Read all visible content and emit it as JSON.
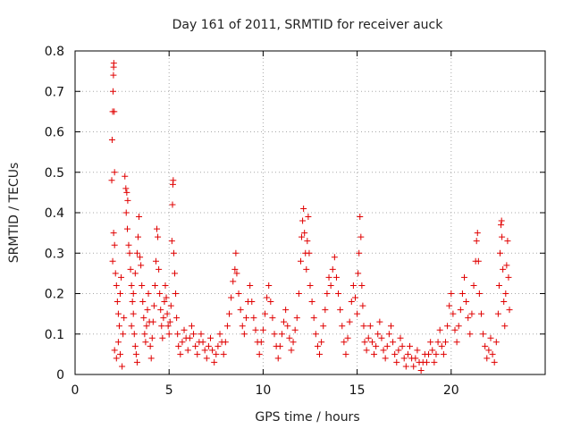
{
  "chart_data": {
    "type": "scatter",
    "title": "Day 161 of 2011, SRMTID for receiver auck",
    "xlabel": "GPS time / hours",
    "ylabel": "SRMTID / TECUs",
    "xlim": [
      0,
      25
    ],
    "ylim": [
      0,
      0.8
    ],
    "xticks": [
      0,
      5,
      10,
      15,
      20
    ],
    "xtick_labels": [
      "0",
      "5",
      "10",
      "15",
      "20"
    ],
    "yticks": [
      0,
      0.1,
      0.2,
      0.3,
      0.4,
      0.5,
      0.6,
      0.7,
      0.8
    ],
    "ytick_labels": [
      "0",
      "0.1",
      "0.2",
      "0.3",
      "0.4",
      "0.5",
      "0.6",
      "0.7",
      "0.8"
    ],
    "grid": true,
    "marker": "+",
    "marker_color": "#e00000",
    "series": [
      {
        "name": "SRMTID",
        "points": [
          [
            1.95,
            0.48
          ],
          [
            1.97,
            0.58
          ],
          [
            2.0,
            0.65
          ],
          [
            2.02,
            0.7
          ],
          [
            2.04,
            0.74
          ],
          [
            2.05,
            0.76
          ],
          [
            2.06,
            0.77
          ],
          [
            2.08,
            0.65
          ],
          [
            2.1,
            0.5
          ],
          [
            2.0,
            0.28
          ],
          [
            2.05,
            0.35
          ],
          [
            2.1,
            0.32
          ],
          [
            2.15,
            0.25
          ],
          [
            2.2,
            0.22
          ],
          [
            2.25,
            0.18
          ],
          [
            2.3,
            0.15
          ],
          [
            2.35,
            0.12
          ],
          [
            2.4,
            0.2
          ],
          [
            2.1,
            0.06
          ],
          [
            2.2,
            0.04
          ],
          [
            2.3,
            0.08
          ],
          [
            2.4,
            0.05
          ],
          [
            2.5,
            0.02
          ],
          [
            2.55,
            0.1
          ],
          [
            2.6,
            0.14
          ],
          [
            2.45,
            0.24
          ],
          [
            2.65,
            0.49
          ],
          [
            2.7,
            0.46
          ],
          [
            2.75,
            0.45
          ],
          [
            2.8,
            0.43
          ],
          [
            2.72,
            0.4
          ],
          [
            2.78,
            0.36
          ],
          [
            2.85,
            0.32
          ],
          [
            2.9,
            0.3
          ],
          [
            2.95,
            0.26
          ],
          [
            3.0,
            0.22
          ],
          [
            3.05,
            0.18
          ],
          [
            3.1,
            0.15
          ],
          [
            3.15,
            0.1
          ],
          [
            3.2,
            0.07
          ],
          [
            3.25,
            0.05
          ],
          [
            3.3,
            0.03
          ],
          [
            3.0,
            0.12
          ],
          [
            3.1,
            0.2
          ],
          [
            3.2,
            0.25
          ],
          [
            3.3,
            0.3
          ],
          [
            3.35,
            0.34
          ],
          [
            3.4,
            0.39
          ],
          [
            3.45,
            0.29
          ],
          [
            3.5,
            0.27
          ],
          [
            3.55,
            0.22
          ],
          [
            3.6,
            0.18
          ],
          [
            3.65,
            0.14
          ],
          [
            3.7,
            0.1
          ],
          [
            3.75,
            0.08
          ],
          [
            3.8,
            0.12
          ],
          [
            3.85,
            0.16
          ],
          [
            3.9,
            0.2
          ],
          [
            3.95,
            0.13
          ],
          [
            4.0,
            0.07
          ],
          [
            4.05,
            0.04
          ],
          [
            4.1,
            0.09
          ],
          [
            4.15,
            0.13
          ],
          [
            4.2,
            0.17
          ],
          [
            4.25,
            0.22
          ],
          [
            4.3,
            0.28
          ],
          [
            4.35,
            0.36
          ],
          [
            4.4,
            0.34
          ],
          [
            4.45,
            0.26
          ],
          [
            4.5,
            0.2
          ],
          [
            4.55,
            0.16
          ],
          [
            4.6,
            0.12
          ],
          [
            4.65,
            0.09
          ],
          [
            4.7,
            0.14
          ],
          [
            4.75,
            0.18
          ],
          [
            4.8,
            0.22
          ],
          [
            4.85,
            0.19
          ],
          [
            4.9,
            0.15
          ],
          [
            4.95,
            0.12
          ],
          [
            5.0,
            0.1
          ],
          [
            5.05,
            0.13
          ],
          [
            5.1,
            0.17
          ],
          [
            5.15,
            0.33
          ],
          [
            5.18,
            0.42
          ],
          [
            5.2,
            0.47
          ],
          [
            5.22,
            0.48
          ],
          [
            5.25,
            0.3
          ],
          [
            5.3,
            0.25
          ],
          [
            5.35,
            0.2
          ],
          [
            5.4,
            0.14
          ],
          [
            5.45,
            0.1
          ],
          [
            5.5,
            0.07
          ],
          [
            5.6,
            0.05
          ],
          [
            5.7,
            0.08
          ],
          [
            5.8,
            0.11
          ],
          [
            5.9,
            0.09
          ],
          [
            6.0,
            0.06
          ],
          [
            6.1,
            0.09
          ],
          [
            6.2,
            0.12
          ],
          [
            6.3,
            0.1
          ],
          [
            6.4,
            0.07
          ],
          [
            6.5,
            0.05
          ],
          [
            6.6,
            0.08
          ],
          [
            6.7,
            0.1
          ],
          [
            6.8,
            0.08
          ],
          [
            6.9,
            0.06
          ],
          [
            7.0,
            0.04
          ],
          [
            7.1,
            0.07
          ],
          [
            7.2,
            0.09
          ],
          [
            7.3,
            0.06
          ],
          [
            7.4,
            0.03
          ],
          [
            7.5,
            0.05
          ],
          [
            7.6,
            0.07
          ],
          [
            7.7,
            0.1
          ],
          [
            7.8,
            0.08
          ],
          [
            7.9,
            0.05
          ],
          [
            8.0,
            0.08
          ],
          [
            8.1,
            0.12
          ],
          [
            8.2,
            0.15
          ],
          [
            8.3,
            0.19
          ],
          [
            8.4,
            0.23
          ],
          [
            8.5,
            0.26
          ],
          [
            8.55,
            0.3
          ],
          [
            8.6,
            0.25
          ],
          [
            8.7,
            0.2
          ],
          [
            8.8,
            0.16
          ],
          [
            8.9,
            0.12
          ],
          [
            9.0,
            0.1
          ],
          [
            9.1,
            0.14
          ],
          [
            9.2,
            0.18
          ],
          [
            9.3,
            0.22
          ],
          [
            9.4,
            0.18
          ],
          [
            9.5,
            0.14
          ],
          [
            9.6,
            0.11
          ],
          [
            9.7,
            0.08
          ],
          [
            9.8,
            0.05
          ],
          [
            9.9,
            0.08
          ],
          [
            10.0,
            0.11
          ],
          [
            10.1,
            0.15
          ],
          [
            10.2,
            0.19
          ],
          [
            10.3,
            0.22
          ],
          [
            10.4,
            0.18
          ],
          [
            10.5,
            0.14
          ],
          [
            10.6,
            0.1
          ],
          [
            10.7,
            0.07
          ],
          [
            10.8,
            0.04
          ],
          [
            10.9,
            0.07
          ],
          [
            11.0,
            0.1
          ],
          [
            11.1,
            0.13
          ],
          [
            11.2,
            0.16
          ],
          [
            11.3,
            0.12
          ],
          [
            11.4,
            0.09
          ],
          [
            11.5,
            0.06
          ],
          [
            11.6,
            0.08
          ],
          [
            11.7,
            0.11
          ],
          [
            11.8,
            0.14
          ],
          [
            11.9,
            0.2
          ],
          [
            12.0,
            0.28
          ],
          [
            12.05,
            0.34
          ],
          [
            12.1,
            0.38
          ],
          [
            12.15,
            0.41
          ],
          [
            12.2,
            0.35
          ],
          [
            12.25,
            0.3
          ],
          [
            12.3,
            0.26
          ],
          [
            12.35,
            0.33
          ],
          [
            12.4,
            0.39
          ],
          [
            12.45,
            0.3
          ],
          [
            12.5,
            0.22
          ],
          [
            12.6,
            0.18
          ],
          [
            12.7,
            0.14
          ],
          [
            12.8,
            0.1
          ],
          [
            12.9,
            0.07
          ],
          [
            13.0,
            0.05
          ],
          [
            13.1,
            0.08
          ],
          [
            13.2,
            0.12
          ],
          [
            13.3,
            0.16
          ],
          [
            13.4,
            0.2
          ],
          [
            13.5,
            0.24
          ],
          [
            13.6,
            0.22
          ],
          [
            13.7,
            0.26
          ],
          [
            13.8,
            0.29
          ],
          [
            13.9,
            0.24
          ],
          [
            14.0,
            0.2
          ],
          [
            14.1,
            0.16
          ],
          [
            14.2,
            0.12
          ],
          [
            14.3,
            0.08
          ],
          [
            14.4,
            0.05
          ],
          [
            14.5,
            0.09
          ],
          [
            14.6,
            0.13
          ],
          [
            14.7,
            0.18
          ],
          [
            14.8,
            0.22
          ],
          [
            14.9,
            0.19
          ],
          [
            15.0,
            0.15
          ],
          [
            15.05,
            0.25
          ],
          [
            15.1,
            0.3
          ],
          [
            15.15,
            0.39
          ],
          [
            15.2,
            0.34
          ],
          [
            15.25,
            0.22
          ],
          [
            15.3,
            0.17
          ],
          [
            15.35,
            0.12
          ],
          [
            15.4,
            0.08
          ],
          [
            15.5,
            0.06
          ],
          [
            15.6,
            0.09
          ],
          [
            15.7,
            0.12
          ],
          [
            15.8,
            0.08
          ],
          [
            15.9,
            0.05
          ],
          [
            16.0,
            0.07
          ],
          [
            16.1,
            0.1
          ],
          [
            16.2,
            0.13
          ],
          [
            16.3,
            0.09
          ],
          [
            16.4,
            0.06
          ],
          [
            16.5,
            0.04
          ],
          [
            16.6,
            0.07
          ],
          [
            16.7,
            0.1
          ],
          [
            16.8,
            0.12
          ],
          [
            16.9,
            0.08
          ],
          [
            17.0,
            0.05
          ],
          [
            17.1,
            0.03
          ],
          [
            17.2,
            0.06
          ],
          [
            17.3,
            0.09
          ],
          [
            17.4,
            0.07
          ],
          [
            17.5,
            0.04
          ],
          [
            17.6,
            0.02
          ],
          [
            17.7,
            0.05
          ],
          [
            17.8,
            0.07
          ],
          [
            17.9,
            0.04
          ],
          [
            18.0,
            0.02
          ],
          [
            18.1,
            0.04
          ],
          [
            18.2,
            0.06
          ],
          [
            18.3,
            0.03
          ],
          [
            18.4,
            0.01
          ],
          [
            18.5,
            0.03
          ],
          [
            18.6,
            0.05
          ],
          [
            18.7,
            0.03
          ],
          [
            18.8,
            0.05
          ],
          [
            18.9,
            0.08
          ],
          [
            19.0,
            0.06
          ],
          [
            19.1,
            0.03
          ],
          [
            19.2,
            0.05
          ],
          [
            19.3,
            0.08
          ],
          [
            19.4,
            0.11
          ],
          [
            19.5,
            0.07
          ],
          [
            19.6,
            0.05
          ],
          [
            19.7,
            0.08
          ],
          [
            19.8,
            0.12
          ],
          [
            19.9,
            0.17
          ],
          [
            20.0,
            0.2
          ],
          [
            20.1,
            0.15
          ],
          [
            20.2,
            0.11
          ],
          [
            20.3,
            0.08
          ],
          [
            20.4,
            0.12
          ],
          [
            20.5,
            0.16
          ],
          [
            20.6,
            0.2
          ],
          [
            20.7,
            0.24
          ],
          [
            20.8,
            0.18
          ],
          [
            20.9,
            0.14
          ],
          [
            21.0,
            0.1
          ],
          [
            21.1,
            0.15
          ],
          [
            21.2,
            0.22
          ],
          [
            21.3,
            0.28
          ],
          [
            21.35,
            0.33
          ],
          [
            21.4,
            0.35
          ],
          [
            21.45,
            0.28
          ],
          [
            21.5,
            0.2
          ],
          [
            21.6,
            0.15
          ],
          [
            21.7,
            0.1
          ],
          [
            21.8,
            0.07
          ],
          [
            21.9,
            0.04
          ],
          [
            22.0,
            0.06
          ],
          [
            22.1,
            0.09
          ],
          [
            22.2,
            0.05
          ],
          [
            22.3,
            0.03
          ],
          [
            22.4,
            0.08
          ],
          [
            22.5,
            0.15
          ],
          [
            22.55,
            0.22
          ],
          [
            22.6,
            0.3
          ],
          [
            22.65,
            0.37
          ],
          [
            22.68,
            0.38
          ],
          [
            22.7,
            0.34
          ],
          [
            22.75,
            0.26
          ],
          [
            22.8,
            0.18
          ],
          [
            22.85,
            0.12
          ],
          [
            22.9,
            0.2
          ],
          [
            22.95,
            0.27
          ],
          [
            23.0,
            0.33
          ],
          [
            23.05,
            0.24
          ],
          [
            23.1,
            0.16
          ]
        ]
      }
    ]
  }
}
